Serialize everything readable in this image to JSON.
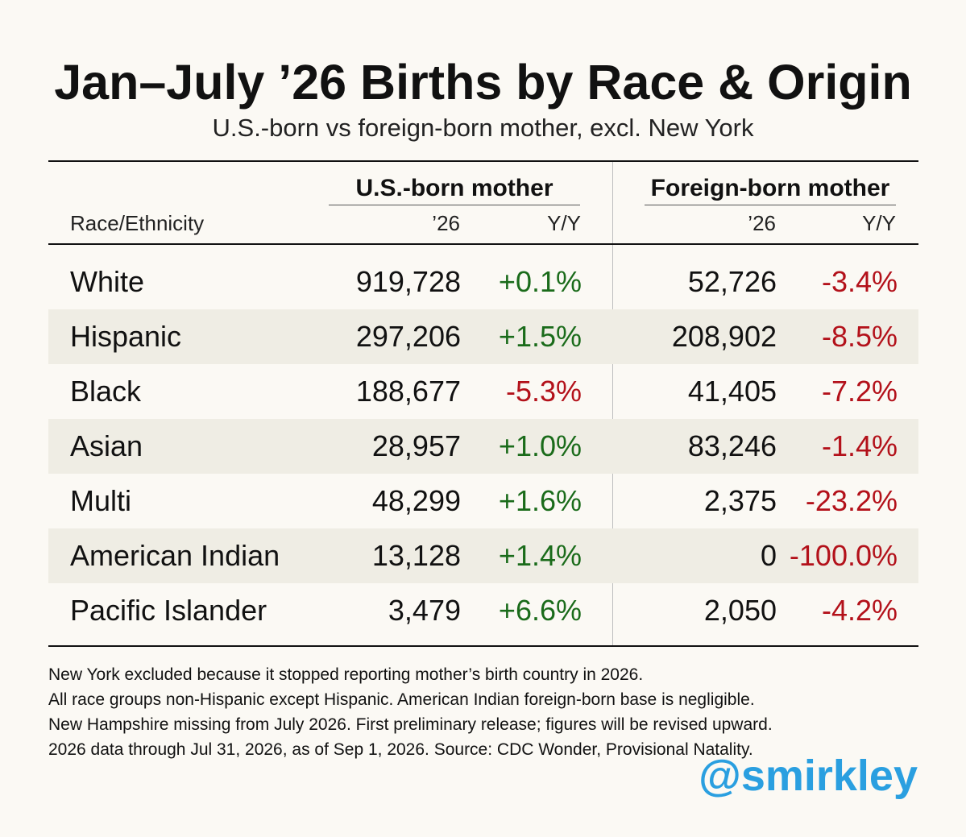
{
  "title": "Jan–July ’26 Births by Race & Origin",
  "subtitle": "U.S.-born vs foreign-born mother, excl. New York",
  "header": {
    "race_label": "Race/Ethnicity",
    "group_us": "U.S.-born mother",
    "group_foreign": "Foreign-born mother",
    "col_year": "’26",
    "col_yy": "Y/Y"
  },
  "chart_data": {
    "type": "table",
    "title": "Jan–July ’26 Births by Race & Origin",
    "subtitle": "U.S.-born vs foreign-born mother, excl. New York",
    "columns": [
      "Race/Ethnicity",
      "U.S.-born mother ’26",
      "U.S.-born mother Y/Y",
      "Foreign-born mother ’26",
      "Foreign-born mother Y/Y"
    ],
    "rows": [
      {
        "race": "White",
        "us_count": "919,728",
        "us_yy": "+0.1%",
        "fb_count": "52,726",
        "fb_yy": "-3.4%"
      },
      {
        "race": "Hispanic",
        "us_count": "297,206",
        "us_yy": "+1.5%",
        "fb_count": "208,902",
        "fb_yy": "-8.5%"
      },
      {
        "race": "Black",
        "us_count": "188,677",
        "us_yy": "-5.3%",
        "fb_count": "41,405",
        "fb_yy": "-7.2%"
      },
      {
        "race": "Asian",
        "us_count": "28,957",
        "us_yy": "+1.0%",
        "fb_count": "83,246",
        "fb_yy": "-1.4%"
      },
      {
        "race": "Multi",
        "us_count": "48,299",
        "us_yy": "+1.6%",
        "fb_count": "2,375",
        "fb_yy": "-23.2%"
      },
      {
        "race": "American Indian",
        "us_count": "13,128",
        "us_yy": "+1.4%",
        "fb_count": "0",
        "fb_yy": "-100.0%"
      },
      {
        "race": "Pacific Islander",
        "us_count": "3,479",
        "us_yy": "+6.6%",
        "fb_count": "2,050",
        "fb_yy": "-4.2%"
      }
    ]
  },
  "notes": [
    "New York excluded because it stopped reporting mother’s birth country in 2026.",
    "All race groups non-Hispanic except Hispanic. American Indian foreign-born base is negligible.",
    "New Hampshire missing from July 2026. First preliminary release; figures will be revised upward.",
    "2026 data through Jul 31, 2026, as of Sep 1, 2026. Source: CDC Wonder, Provisional Natality."
  ],
  "handle": "@smirkley",
  "colors": {
    "positive": "#1a6b1a",
    "negative": "#b3111a",
    "shade": "#efede4",
    "background": "#fbf9f4",
    "handle": "#2a9fe0"
  }
}
